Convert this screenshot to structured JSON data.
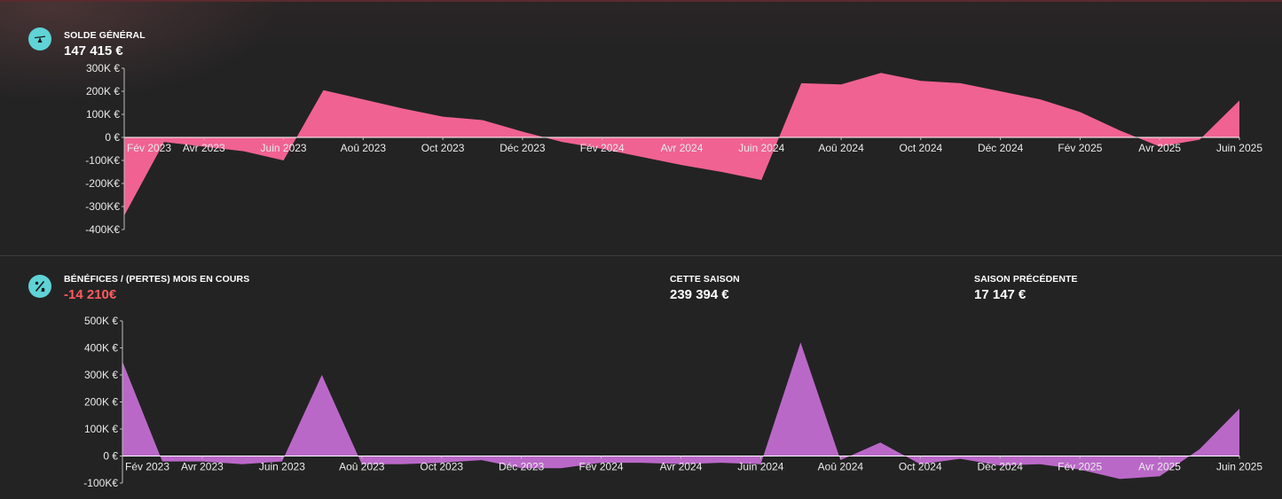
{
  "panels": {
    "balance": {
      "label": "SOLDE GÉNÉRAL",
      "value": "147 415 €",
      "icon": "scale-icon"
    },
    "profit": {
      "label": "BÉNÉFICES / (PERTES) MOIS EN COURS",
      "value": "-14 210€",
      "icon": "percent-trend-icon",
      "this_season_label": "CETTE SAISON",
      "this_season_value": "239 394 €",
      "prev_season_label": "SAISON PRÉCÉDENTE",
      "prev_season_value": "17 147 €"
    }
  },
  "colors": {
    "balance_fill": "#f06292",
    "profit_fill": "#ba68c8",
    "icon_bg": "#5fd3d6",
    "negative_text": "#ff5a5f"
  },
  "chart_data": [
    {
      "type": "area",
      "name": "balance",
      "title": "SOLDE GÉNÉRAL",
      "x_tick_labels": [
        "Fév 2023",
        "Avr 2023",
        "Juin 2023",
        "Aoû 2023",
        "Oct 2023",
        "Déc 2023",
        "Fév 2024",
        "Avr 2024",
        "Juin 2024",
        "Aoû 2024",
        "Oct 2024",
        "Déc 2024",
        "Fév 2025",
        "Avr 2025",
        "Juin 2025"
      ],
      "y_tick_labels": [
        "300K €",
        "200K €",
        "100K €",
        "0 €",
        "-100K€",
        "-200K€",
        "-300K€",
        "-400K€"
      ],
      "ylim": [
        -400000,
        300000
      ],
      "x": [
        "2023-02",
        "2023-03",
        "2023-04",
        "2023-05",
        "2023-06",
        "2023-07",
        "2023-08",
        "2023-09",
        "2023-10",
        "2023-11",
        "2023-12",
        "2024-01",
        "2024-02",
        "2024-03",
        "2024-04",
        "2024-05",
        "2024-06",
        "2024-07",
        "2024-08",
        "2024-09",
        "2024-10",
        "2024-11",
        "2024-12",
        "2025-01",
        "2025-02",
        "2025-03",
        "2025-04",
        "2025-05",
        "2025-06"
      ],
      "values": [
        -340000,
        -20000,
        -40000,
        -60000,
        -100000,
        205000,
        165000,
        125000,
        90000,
        75000,
        25000,
        -20000,
        -50000,
        -85000,
        -120000,
        -150000,
        -185000,
        235000,
        230000,
        280000,
        245000,
        235000,
        200000,
        165000,
        110000,
        30000,
        -40000,
        -10000,
        160000
      ]
    },
    {
      "type": "area",
      "name": "profit",
      "title": "BÉNÉFICES / (PERTES) MOIS EN COURS",
      "x_tick_labels": [
        "Fév 2023",
        "Avr 2023",
        "Juin 2023",
        "Aoû 2023",
        "Oct 2023",
        "Déc 2023",
        "Fév 2024",
        "Avr 2024",
        "Juin 2024",
        "Aoû 2024",
        "Oct 2024",
        "Déc 2024",
        "Fév 2025",
        "Avr 2025",
        "Juin 2025"
      ],
      "y_tick_labels": [
        "500K €",
        "400K €",
        "300K €",
        "200K €",
        "100K €",
        "0 €",
        "-100K€"
      ],
      "ylim": [
        -100000,
        500000
      ],
      "x": [
        "2023-02",
        "2023-03",
        "2023-04",
        "2023-05",
        "2023-06",
        "2023-07",
        "2023-08",
        "2023-09",
        "2023-10",
        "2023-11",
        "2023-12",
        "2024-01",
        "2024-02",
        "2024-03",
        "2024-04",
        "2024-05",
        "2024-06",
        "2024-07",
        "2024-08",
        "2024-09",
        "2024-10",
        "2024-11",
        "2024-12",
        "2025-01",
        "2025-02",
        "2025-03",
        "2025-04",
        "2025-05",
        "2025-06"
      ],
      "values": [
        350000,
        -20000,
        -20000,
        -30000,
        -20000,
        300000,
        -30000,
        -30000,
        -25000,
        -15000,
        -45000,
        -45000,
        -25000,
        -25000,
        -30000,
        -25000,
        -30000,
        420000,
        -15000,
        50000,
        -30000,
        -10000,
        -35000,
        -30000,
        -50000,
        -85000,
        -75000,
        25000,
        175000
      ]
    }
  ]
}
